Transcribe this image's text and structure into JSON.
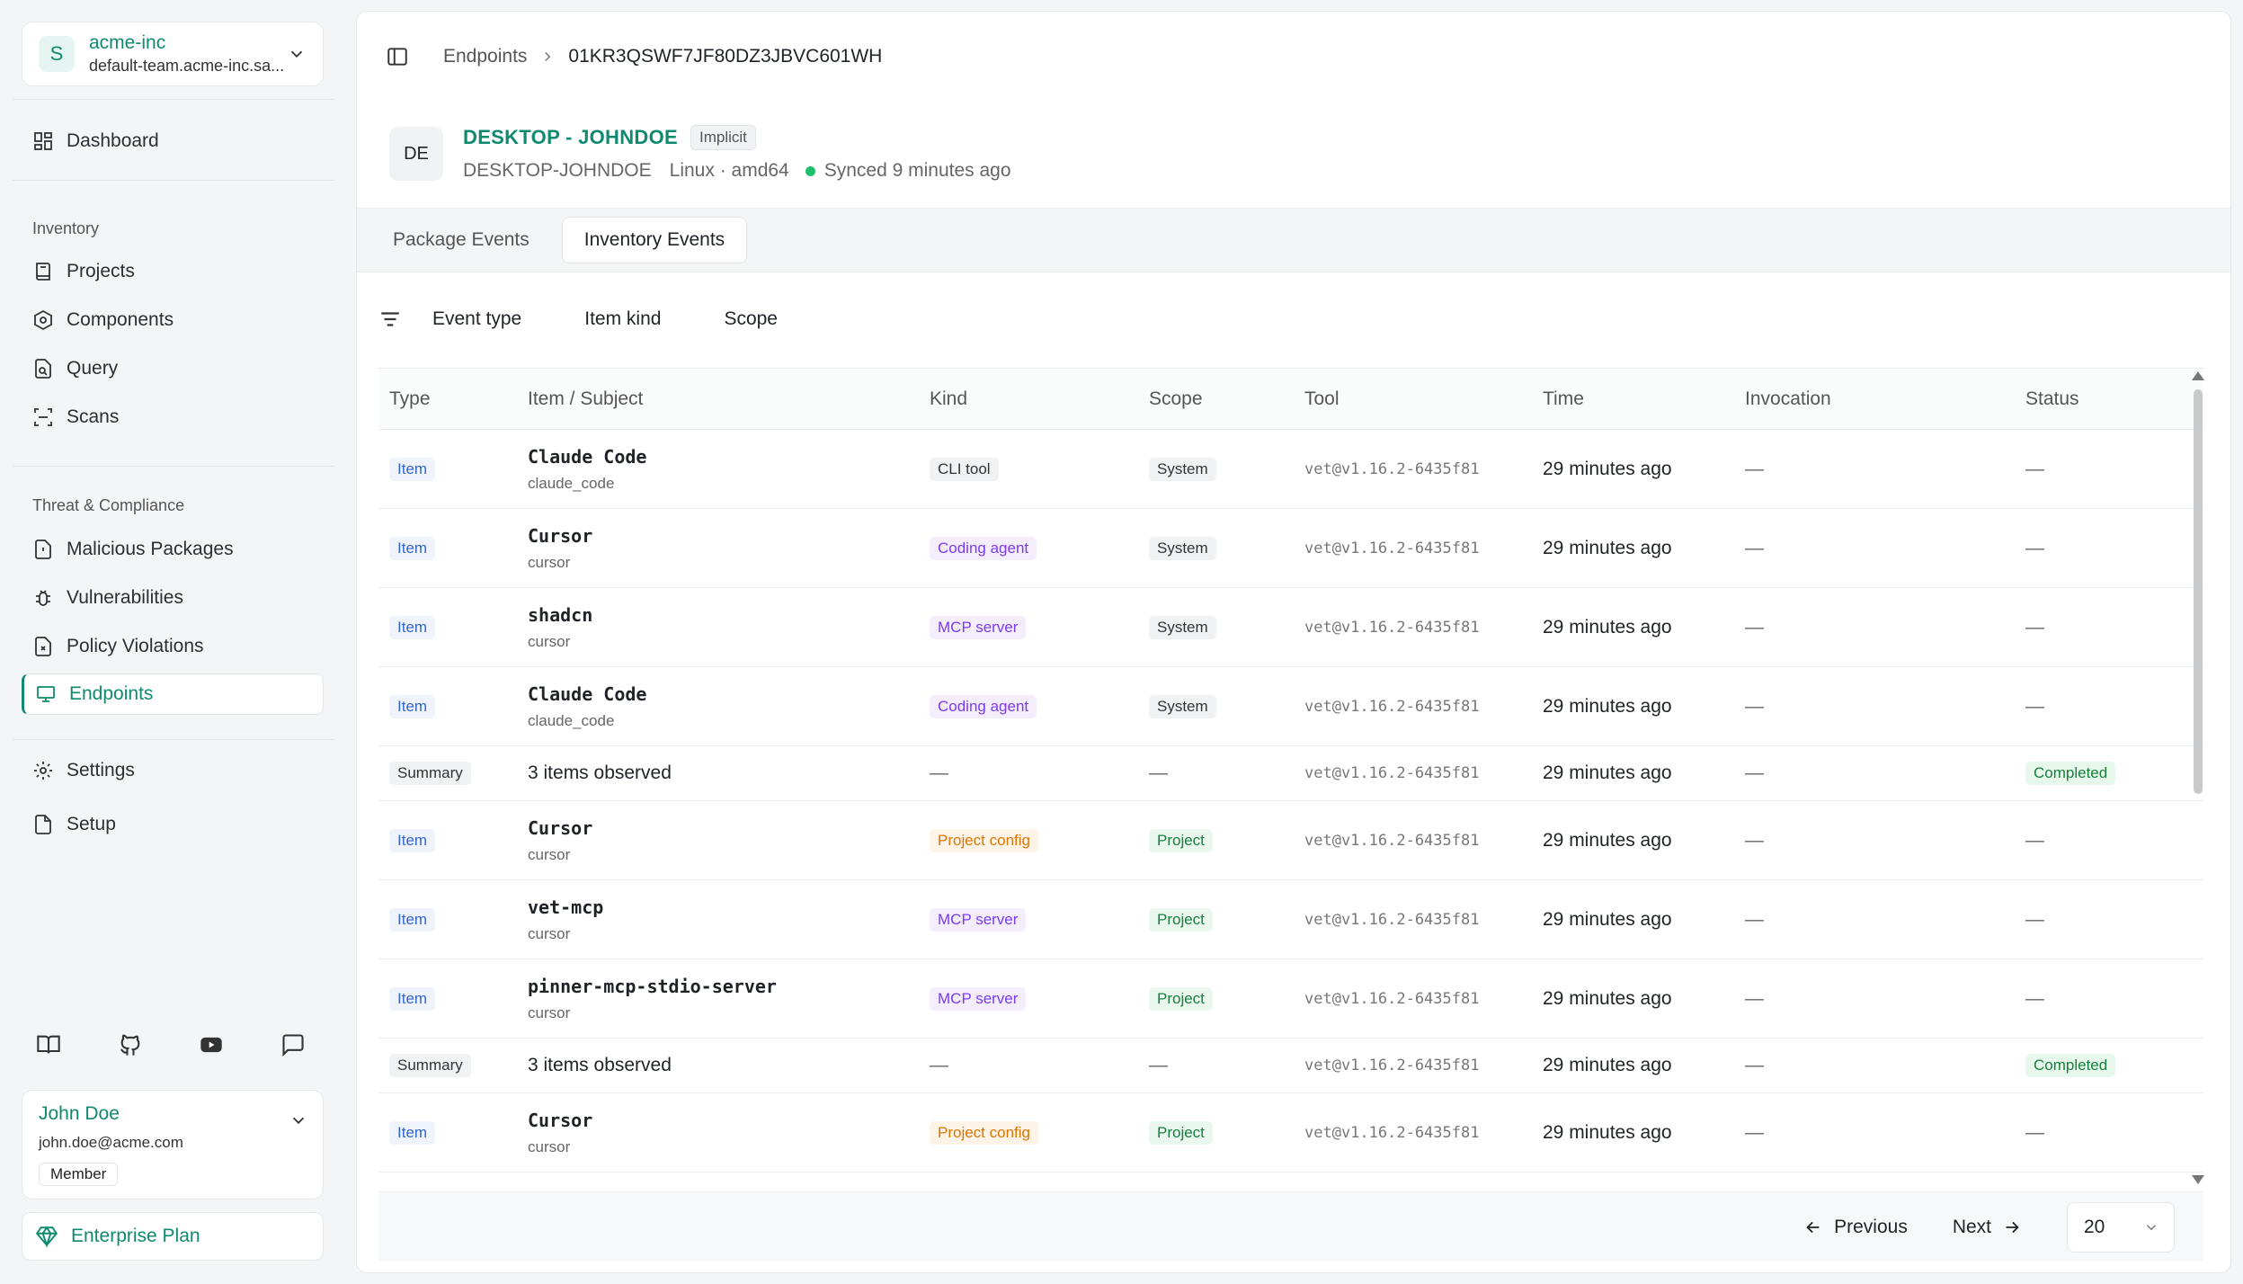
{
  "org": {
    "initial": "S",
    "name": "acme-inc",
    "team": "default-team.acme-inc.sa..."
  },
  "nav": {
    "dashboard": "Dashboard",
    "inventory_section": "Inventory",
    "projects": "Projects",
    "components": "Components",
    "query": "Query",
    "scans": "Scans",
    "threat_section": "Threat & Compliance",
    "malicious": "Malicious Packages",
    "vulnerabilities": "Vulnerabilities",
    "policy": "Policy Violations",
    "endpoints": "Endpoints",
    "settings": "Settings",
    "setup": "Setup"
  },
  "user": {
    "name": "John Doe",
    "email": "john.doe@acme.com",
    "role": "Member"
  },
  "plan": "Enterprise Plan",
  "breadcrumb": {
    "parent": "Endpoints",
    "current": "01KR3QSWF7JF80DZ3JBVC601WH"
  },
  "endpoint": {
    "initials": "DE",
    "title": "DESKTOP - JOHNDOE",
    "badge": "Implicit",
    "hostname": "DESKTOP-JOHNDOE",
    "os": "Linux · amd64",
    "sync": "Synced 9 minutes ago",
    "sync_color": "#1fbf6a"
  },
  "tabs": [
    "Package Events",
    "Inventory Events"
  ],
  "filters": [
    "Event type",
    "Item kind",
    "Scope"
  ],
  "columns": [
    "Type",
    "Item / Subject",
    "Kind",
    "Scope",
    "Tool",
    "Time",
    "Invocation",
    "Status"
  ],
  "rows": [
    {
      "type": "Item",
      "name": "Claude Code",
      "sub": "claude_code",
      "kind": "CLI tool",
      "kind_style": "cli",
      "scope": "System",
      "scope_style": "system",
      "tool": "vet@v1.16.2-6435f81",
      "time": "29 minutes ago",
      "invocation": "—",
      "status": "—"
    },
    {
      "type": "Item",
      "name": "Cursor",
      "sub": "cursor",
      "kind": "Coding agent",
      "kind_style": "coding",
      "scope": "System",
      "scope_style": "system",
      "tool": "vet@v1.16.2-6435f81",
      "time": "29 minutes ago",
      "invocation": "—",
      "status": "—"
    },
    {
      "type": "Item",
      "name": "shadcn",
      "sub": "cursor",
      "kind": "MCP server",
      "kind_style": "mcp",
      "scope": "System",
      "scope_style": "system",
      "tool": "vet@v1.16.2-6435f81",
      "time": "29 minutes ago",
      "invocation": "—",
      "status": "—"
    },
    {
      "type": "Item",
      "name": "Claude Code",
      "sub": "claude_code",
      "kind": "Coding agent",
      "kind_style": "coding",
      "scope": "System",
      "scope_style": "system",
      "tool": "vet@v1.16.2-6435f81",
      "time": "29 minutes ago",
      "invocation": "—",
      "status": "—"
    },
    {
      "type": "Summary",
      "summary": "3 items observed",
      "kind": "—",
      "scope": "—",
      "tool": "vet@v1.16.2-6435f81",
      "time": "29 minutes ago",
      "invocation": "—",
      "status": "Completed"
    },
    {
      "type": "Item",
      "name": "Cursor",
      "sub": "cursor",
      "kind": "Project config",
      "kind_style": "projcfg",
      "scope": "Project",
      "scope_style": "project",
      "tool": "vet@v1.16.2-6435f81",
      "time": "29 minutes ago",
      "invocation": "—",
      "status": "—"
    },
    {
      "type": "Item",
      "name": "vet-mcp",
      "sub": "cursor",
      "kind": "MCP server",
      "kind_style": "mcp",
      "scope": "Project",
      "scope_style": "project",
      "tool": "vet@v1.16.2-6435f81",
      "time": "29 minutes ago",
      "invocation": "—",
      "status": "—"
    },
    {
      "type": "Item",
      "name": "pinner-mcp-stdio-server",
      "sub": "cursor",
      "kind": "MCP server",
      "kind_style": "mcp",
      "scope": "Project",
      "scope_style": "project",
      "tool": "vet@v1.16.2-6435f81",
      "time": "29 minutes ago",
      "invocation": "—",
      "status": "—"
    },
    {
      "type": "Summary",
      "summary": "3 items observed",
      "kind": "—",
      "scope": "—",
      "tool": "vet@v1.16.2-6435f81",
      "time": "29 minutes ago",
      "invocation": "—",
      "status": "Completed"
    },
    {
      "type": "Item",
      "name": "Cursor",
      "sub": "cursor",
      "kind": "Project config",
      "kind_style": "projcfg",
      "scope": "Project",
      "scope_style": "project",
      "tool": "vet@v1.16.2-6435f81",
      "time": "29 minutes ago",
      "invocation": "—",
      "status": "—"
    }
  ],
  "pagination": {
    "previous": "Previous",
    "next": "Next",
    "page_size": "20"
  },
  "colors": {
    "accent": "#0f8a6f",
    "item_chip": "#3366cc",
    "mcp_chip": "#7c3aed",
    "config_chip": "#d97706",
    "project_chip": "#16803c"
  }
}
